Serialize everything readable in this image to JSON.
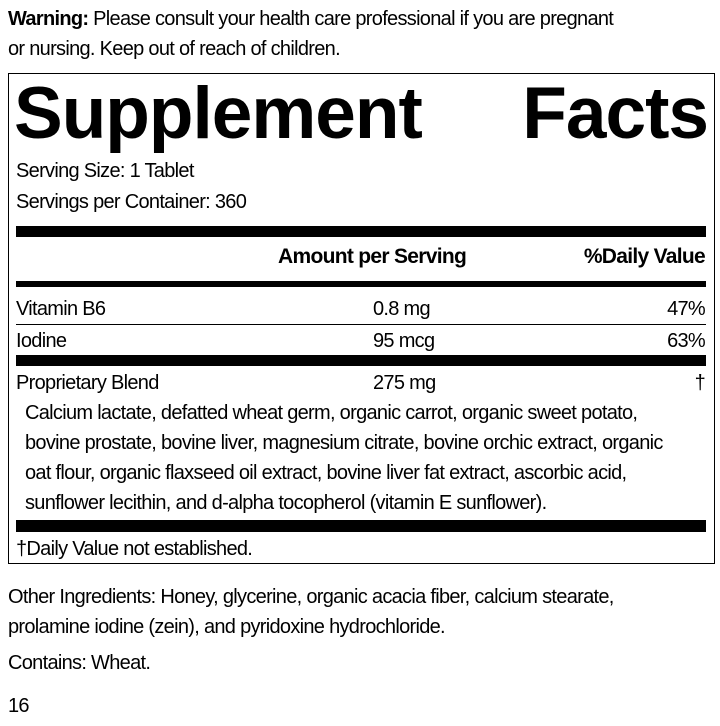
{
  "warning": {
    "label": "Warning:",
    "text": "Please consult your health care professional if you are pregnant",
    "text2": "or nursing. Keep out of reach of children."
  },
  "facts": {
    "title_word1": "Supplement",
    "title_word2": "Facts",
    "serving_size": "Serving Size: 1 Tablet",
    "servings_per_container": "Servings per Container: 360",
    "header_amount": "Amount per Serving",
    "header_dv": "%Daily Value",
    "rows": [
      {
        "name": "Vitamin B6",
        "amount": "0.8 mg",
        "dv": "47%"
      },
      {
        "name": "Iodine",
        "amount": "95 mcg",
        "dv": "63%"
      },
      {
        "name": "Proprietary Blend",
        "amount": "275 mg",
        "dv": "†"
      }
    ],
    "blend_lines": [
      "Calcium lactate, defatted wheat germ, organic carrot, organic sweet potato,",
      "bovine prostate, bovine liver, magnesium citrate, bovine orchic extract, organic",
      "oat flour, organic flaxseed oil extract, bovine liver fat extract, ascorbic acid,",
      "sunflower lecithin, and d-alpha tocopherol (vitamin E sunflower)."
    ],
    "footnote": "†Daily Value not established."
  },
  "other_ingredients": [
    "Other Ingredients: Honey, glycerine, organic acacia fiber, calcium stearate,",
    "prolamine iodine (zein), and pyridoxine hydrochloride."
  ],
  "contains": "Contains: Wheat.",
  "page_number": "16"
}
